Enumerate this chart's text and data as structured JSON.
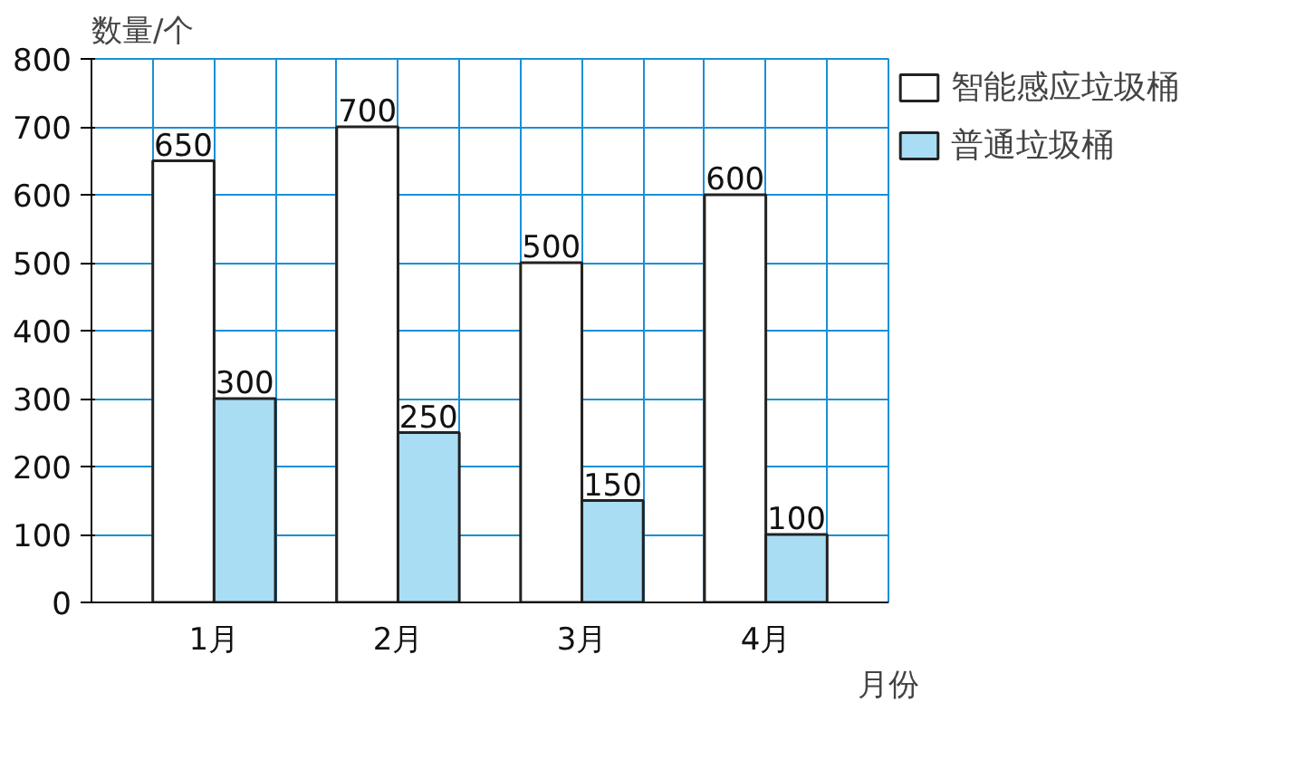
{
  "chart_data": {
    "type": "bar",
    "categories": [
      "1月",
      "2月",
      "3月",
      "4月"
    ],
    "xlabel": "月份",
    "ylabel": "数量/个",
    "series": [
      {
        "name": "智能感应垃圾桶",
        "color": "#ffffff",
        "values": [
          650,
          700,
          500,
          600
        ]
      },
      {
        "name": "普通垃圾桶",
        "color": "#a9ddf4",
        "values": [
          300,
          250,
          150,
          100
        ]
      }
    ],
    "ylim": [
      0,
      800
    ],
    "yticks": [
      0,
      100,
      200,
      300,
      400,
      500,
      600,
      700,
      800
    ],
    "grid": true,
    "legend": "top right",
    "data_labels": true
  }
}
